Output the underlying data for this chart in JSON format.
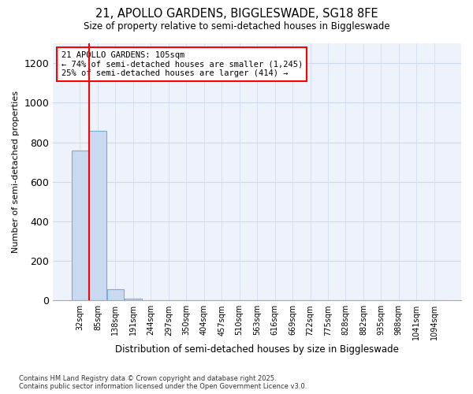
{
  "title_line1": "21, APOLLO GARDENS, BIGGLESWADE, SG18 8FE",
  "title_line2": "Size of property relative to semi-detached houses in Biggleswade",
  "xlabel": "Distribution of semi-detached houses by size in Biggleswade",
  "ylabel": "Number of semi-detached properties",
  "bin_labels": [
    "32sqm",
    "85sqm",
    "138sqm",
    "191sqm",
    "244sqm",
    "297sqm",
    "350sqm",
    "404sqm",
    "457sqm",
    "510sqm",
    "563sqm",
    "616sqm",
    "669sqm",
    "722sqm",
    "775sqm",
    "828sqm",
    "882sqm",
    "935sqm",
    "988sqm",
    "1041sqm",
    "1094sqm"
  ],
  "bar_values": [
    757,
    858,
    57,
    10,
    0,
    0,
    0,
    0,
    0,
    0,
    0,
    0,
    0,
    0,
    0,
    0,
    0,
    0,
    0,
    0,
    0
  ],
  "bar_color": "#c8d9f0",
  "bar_edge_color": "#7aafd4",
  "red_line_x": 1.0,
  "annotation_text": "21 APOLLO GARDENS: 105sqm\n← 74% of semi-detached houses are smaller (1,245)\n25% of semi-detached houses are larger (414) →",
  "annotation_box_color": "white",
  "annotation_border_color": "red",
  "ylim": [
    0,
    1300
  ],
  "yticks": [
    0,
    200,
    400,
    600,
    800,
    1000,
    1200
  ],
  "footer_text": "Contains HM Land Registry data © Crown copyright and database right 2025.\nContains public sector information licensed under the Open Government Licence v3.0.",
  "background_color": "#ffffff",
  "grid_color": "#ccd9ef",
  "plot_bg_color": "#eef2fb"
}
